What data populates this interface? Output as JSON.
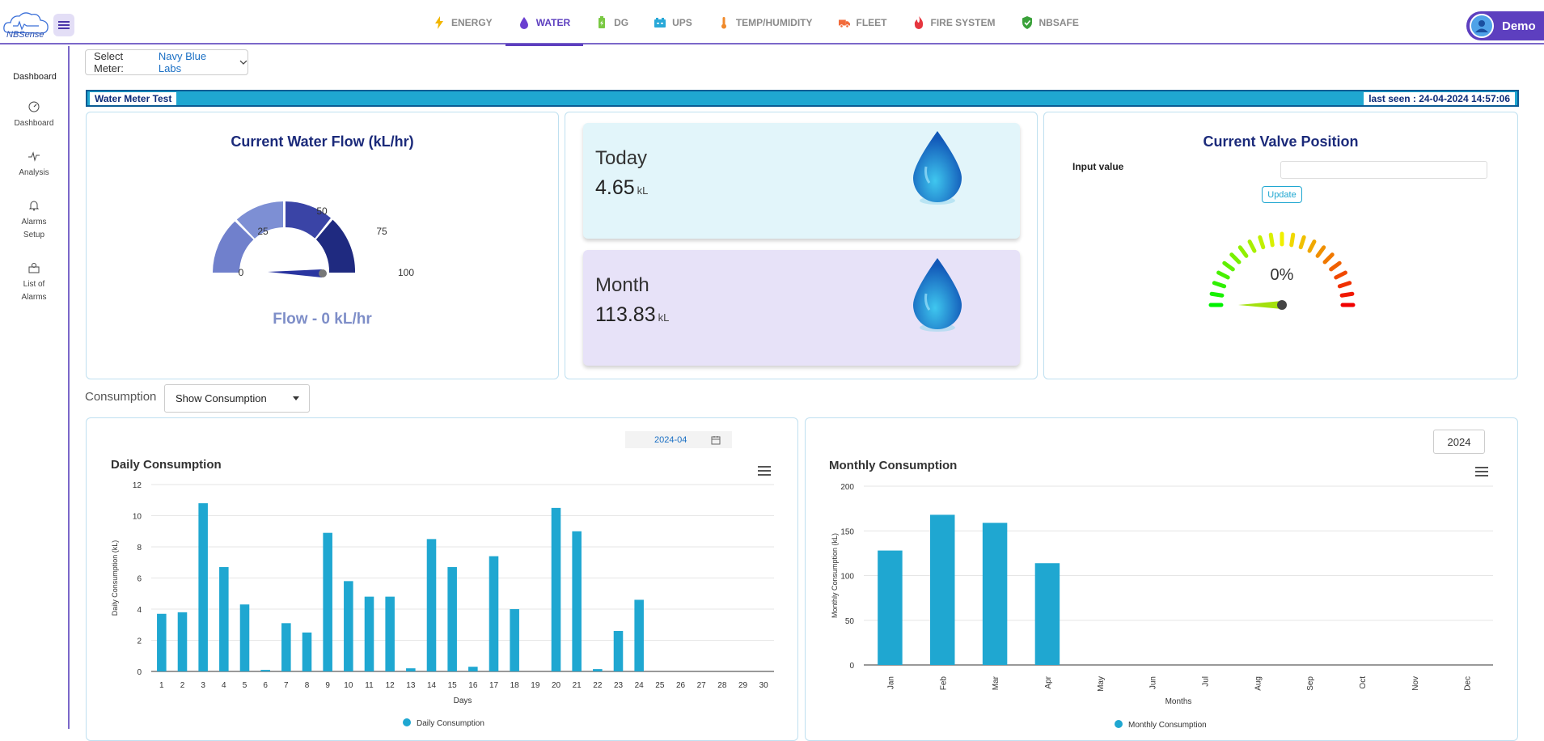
{
  "nav": {
    "items": [
      {
        "label": "ENERGY",
        "icon": "lightning-icon",
        "color": "#f2b600"
      },
      {
        "label": "WATER",
        "icon": "water-drop-icon",
        "color": "#6a3fd0",
        "active": true
      },
      {
        "label": "DG",
        "icon": "battery-icon",
        "color": "#7ac943"
      },
      {
        "label": "UPS",
        "icon": "ups-icon",
        "color": "#28a8d8"
      },
      {
        "label": "TEMP/HUMIDITY",
        "icon": "thermometer-icon",
        "color": "#f08a2b"
      },
      {
        "label": "FLEET",
        "icon": "truck-icon",
        "color": "#f26a3a"
      },
      {
        "label": "FIRE SYSTEM",
        "icon": "fire-icon",
        "color": "#e6363f"
      },
      {
        "label": "NBSAFE",
        "icon": "shield-icon",
        "color": "#3aa13a"
      }
    ],
    "user": "Demo",
    "logo_text": "NBSense"
  },
  "sidebar": {
    "title": "Dashboard",
    "items": [
      {
        "label": "Dashboard",
        "icon": "gauge-icon"
      },
      {
        "label": "Analysis",
        "icon": "pulse-icon"
      },
      {
        "label": "Alarms Setup",
        "icon": "bell-icon"
      },
      {
        "label": "List of Alarms",
        "icon": "list-alarm-icon"
      }
    ]
  },
  "meter": {
    "select_label": "Select Meter:",
    "select_value": "Navy Blue Labs",
    "name": "Water Meter Test",
    "last_seen": "last seen : 24-04-2024 14:57:06"
  },
  "flow": {
    "title": "Current Water Flow (kL/hr)",
    "value_text": "Flow - 0 kL/hr",
    "value": 0,
    "gauge_min": 0,
    "gauge_max": 100,
    "ticks": [
      "0",
      "25",
      "50",
      "75",
      "100"
    ]
  },
  "today": {
    "label": "Today",
    "value": "4.65",
    "unit": "kL"
  },
  "month": {
    "label": "Month",
    "value": "113.83",
    "unit": "kL"
  },
  "valve": {
    "title": "Current Valve Position",
    "input_label": "Input value",
    "input_value": "",
    "update_label": "Update",
    "value_text": "0%",
    "value": 0
  },
  "consumption": {
    "label": "Consumption",
    "select_value": "Show Consumption",
    "daily_date": "2024-04",
    "monthly_year": "2024"
  },
  "chart_data": [
    {
      "type": "bar",
      "title": "Daily Consumption",
      "xlabel": "Days",
      "ylabel": "Daily Consumption (kL)",
      "ylim": [
        0,
        12
      ],
      "yticks": [
        0,
        2,
        4,
        6,
        8,
        10,
        12
      ],
      "categories": [
        "1",
        "2",
        "3",
        "4",
        "5",
        "6",
        "7",
        "8",
        "9",
        "10",
        "11",
        "12",
        "13",
        "14",
        "15",
        "16",
        "17",
        "18",
        "19",
        "20",
        "21",
        "22",
        "23",
        "24",
        "25",
        "26",
        "27",
        "28",
        "29",
        "30"
      ],
      "series": [
        {
          "name": "Daily Consumption",
          "color": "#1fa7d1",
          "values": [
            3.7,
            3.8,
            10.8,
            6.7,
            4.3,
            0.1,
            3.1,
            2.5,
            8.9,
            5.8,
            4.8,
            4.8,
            0.2,
            8.5,
            6.7,
            0.3,
            7.4,
            4.0,
            0,
            10.5,
            9.0,
            0.15,
            2.6,
            4.6,
            0,
            0,
            0,
            0,
            0,
            0
          ]
        }
      ],
      "legend": "bottom",
      "grid": true
    },
    {
      "type": "bar",
      "title": "Monthly Consumption",
      "xlabel": "Months",
      "ylabel": "Monthly Consumption (kL)",
      "ylim": [
        0,
        200
      ],
      "yticks": [
        0,
        50,
        100,
        150,
        200
      ],
      "categories": [
        "Jan",
        "Feb",
        "Mar",
        "Apr",
        "May",
        "Jun",
        "Jul",
        "Aug",
        "Sep",
        "Oct",
        "Nov",
        "Dec"
      ],
      "series": [
        {
          "name": "Monthly Consumption",
          "color": "#1fa7d1",
          "values": [
            128,
            168,
            159,
            113.83,
            0,
            0,
            0,
            0,
            0,
            0,
            0,
            0
          ]
        }
      ],
      "legend": "bottom",
      "grid": true
    }
  ]
}
